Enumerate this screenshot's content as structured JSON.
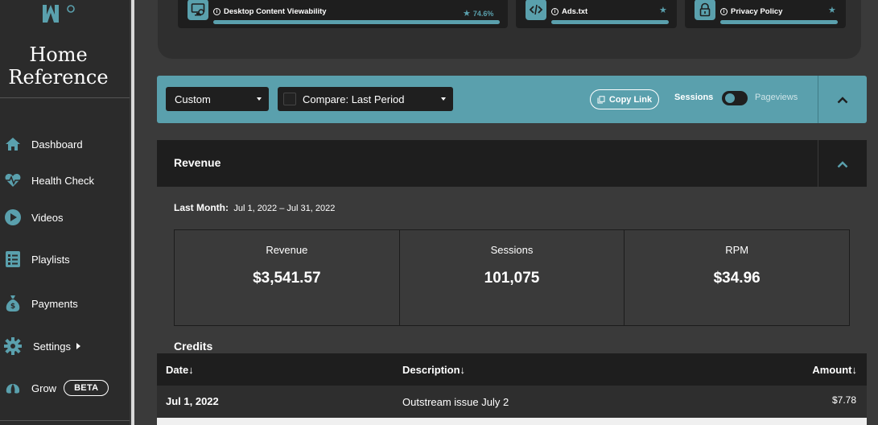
{
  "sidebar": {
    "site_name_line1": "Home",
    "site_name_line2": "Reference",
    "items": [
      {
        "label": "Dashboard",
        "icon": "home-icon"
      },
      {
        "label": "Health Check",
        "icon": "heartbeat-icon"
      },
      {
        "label": "Videos",
        "icon": "play-circle-icon"
      },
      {
        "label": "Playlists",
        "icon": "list-icon"
      },
      {
        "label": "Payments",
        "icon": "money-bag-icon"
      },
      {
        "label": "Settings",
        "icon": "gear-icon"
      },
      {
        "label": "Grow",
        "icon": "leaf-icon",
        "badge": "BETA"
      }
    ]
  },
  "health_cards": [
    {
      "title": "Desktop Content Viewability",
      "percent": "74.6%",
      "icon": "monitor-icon"
    },
    {
      "title": "Ads.txt",
      "icon": "code-icon"
    },
    {
      "title": "Privacy Policy",
      "icon": "lock-icon"
    }
  ],
  "filters": {
    "date_range": "Custom",
    "compare": "Compare: Last Period",
    "copy_link": "Copy Link",
    "toggle_left": "Sessions",
    "toggle_right": "Pageviews"
  },
  "revenue": {
    "title": "Revenue",
    "period_label": "Last Month:",
    "period_range": "Jul 1, 2022 – Jul 31, 2022",
    "stats": [
      {
        "label": "Revenue",
        "value": "$3,541.57"
      },
      {
        "label": "Sessions",
        "value": "101,075"
      },
      {
        "label": "RPM",
        "value": "$34.96"
      }
    ]
  },
  "credits": {
    "title": "Credits",
    "columns": {
      "date": "Date↓",
      "description": "Description↓",
      "amount": "Amount↓"
    },
    "rows": [
      {
        "date": "Jul 1, 2022",
        "description": "Outstream issue July 2",
        "amount": "$7.78"
      }
    ]
  },
  "colors": {
    "accent": "#5aa0ad",
    "sidebar": "#2b2b2b",
    "panel": "#1e1e1e"
  }
}
